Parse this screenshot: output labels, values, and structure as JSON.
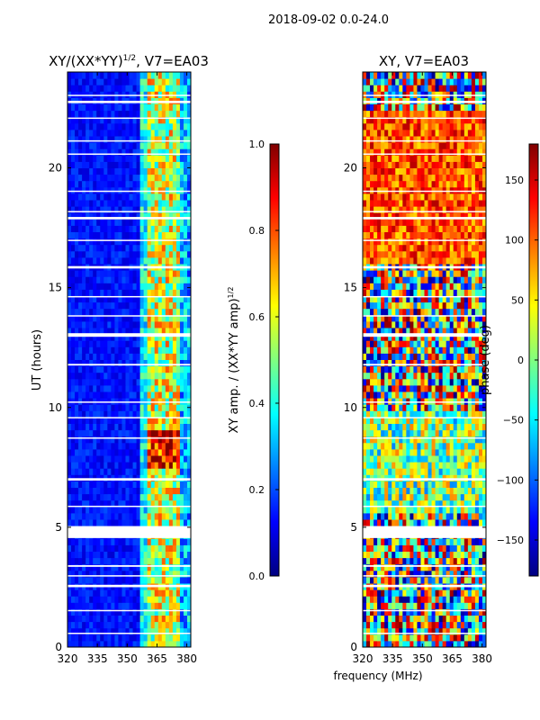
{
  "figure": {
    "suptitle": "2018-09-02 0.0-24.0",
    "xlabel_shared": "frequency (MHz)"
  },
  "colors": {
    "jet": [
      "#000080",
      "#0000ff",
      "#0080ff",
      "#00ffff",
      "#80ff80",
      "#ffff00",
      "#ff8000",
      "#ff0000",
      "#800000"
    ],
    "gap": "#ffffff",
    "frame": "#000000"
  },
  "chart_data": [
    {
      "type": "heatmap",
      "title_main": "XY/(XX*YY)",
      "title_sup": "1/2",
      "title_tail": ", V7=EA03",
      "xlabel": "",
      "ylabel": "UT (hours)",
      "xlim": [
        320,
        382
      ],
      "ylim": [
        0,
        24
      ],
      "xticks": [
        320,
        335,
        350,
        365,
        380
      ],
      "yticks": [
        0,
        5,
        10,
        15,
        20
      ],
      "colorbar": {
        "label_main": "XY amp. / (XX*YY amp)",
        "label_sup": "1/2",
        "range": [
          0.0,
          1.0
        ],
        "ticks": [
          0.0,
          0.2,
          0.4,
          0.6,
          0.8,
          1.0
        ],
        "tick_labels": [
          "0.0",
          "0.2",
          "0.4",
          "0.6",
          "0.8",
          "1.0"
        ]
      },
      "notes": "mostly low amplitude (0.05-0.2) below ~358 MHz; bright bands near 360-375 MHz (0.5-0.9); strongest 7.5-9 h"
    },
    {
      "type": "heatmap",
      "title": "XY, V7=EA03",
      "xlabel": "frequency (MHz)",
      "ylabel": "",
      "xlim": [
        320,
        382
      ],
      "ylim": [
        0,
        24
      ],
      "xticks": [
        320,
        335,
        350,
        365,
        380
      ],
      "yticks": [
        0,
        5,
        10,
        15,
        20
      ],
      "colorbar": {
        "label": "phase (deg)",
        "range": [
          -180,
          180
        ],
        "ticks": [
          -150,
          -100,
          -50,
          0,
          50,
          100,
          150
        ],
        "tick_labels": [
          "−150",
          "−100",
          "−50",
          "0",
          "50",
          "100",
          "150"
        ]
      },
      "notes": "noisy phase over full range; red/orange dominant 16-22 h, mixed cyan/yellow below 10 h"
    }
  ],
  "flagged_intervals_hours": [
    [
      4.55,
      5.05
    ],
    [
      12.95,
      13.1
    ],
    [
      2.5,
      2.6
    ],
    [
      2.95,
      3.0
    ],
    [
      3.35,
      3.42
    ],
    [
      17.85,
      17.95
    ],
    [
      18.15,
      18.2
    ],
    [
      15.8,
      15.9
    ],
    [
      22.7,
      22.8
    ],
    [
      21.1,
      21.15
    ],
    [
      6.95,
      7.05
    ],
    [
      8.7,
      8.75
    ],
    [
      9.55,
      9.6
    ],
    [
      11.75,
      11.82
    ],
    [
      13.8,
      13.85
    ],
    [
      19.0,
      19.05
    ],
    [
      23.0,
      23.05
    ],
    [
      20.55,
      20.6
    ],
    [
      1.5,
      1.55
    ],
    [
      0.55,
      0.6
    ],
    [
      5.85,
      5.9
    ],
    [
      10.2,
      10.25
    ],
    [
      14.6,
      14.65
    ],
    [
      16.95,
      17.0
    ],
    [
      22.05,
      22.1
    ]
  ]
}
